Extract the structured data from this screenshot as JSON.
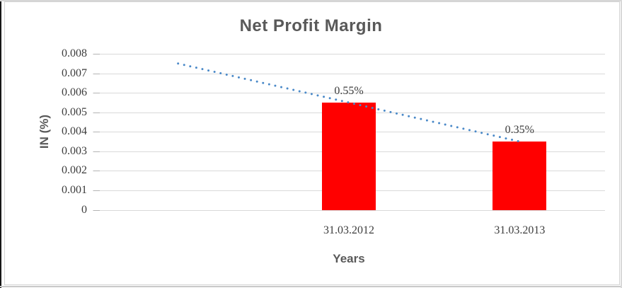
{
  "chart_data": {
    "type": "bar",
    "title": "Net Profit Margin",
    "xlabel": "Years",
    "ylabel": "IN (%)",
    "categories": [
      "31.03.2012",
      "31.03.2013"
    ],
    "values": [
      0.0055,
      0.0035
    ],
    "data_labels": [
      "0.55%",
      "0.35%"
    ],
    "ylim": [
      0,
      0.008
    ],
    "ytick_step": 0.001,
    "ytick_labels": [
      "0.008",
      "0.007",
      "0.006",
      "0.005",
      "0.004",
      "0.003",
      "0.002",
      "0.001",
      "0"
    ],
    "grid": "horizontal-major",
    "legend": "none",
    "bar_color": "#ff0000",
    "trendline": {
      "style": "dotted",
      "color": "#4a89c8",
      "linear_through_values": [
        0.0055,
        0.0035
      ],
      "extends_back_periods": 1,
      "start_value": 0.0075,
      "end_value": 0.0035
    },
    "colors": {
      "bar": "#ff0000",
      "trendline": "#4a89c8",
      "gridline": "#d9d9d9",
      "tick_text": "#3d3d3d",
      "heading_text": "#595959"
    }
  }
}
